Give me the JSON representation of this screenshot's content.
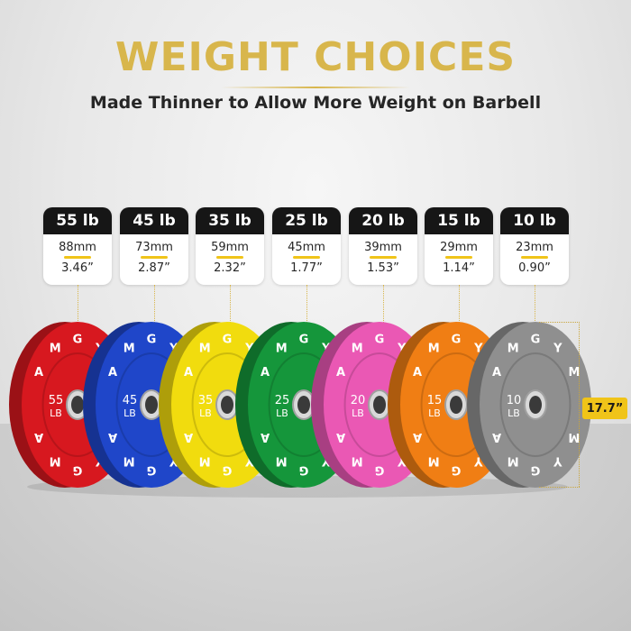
{
  "header": {
    "title": "WEIGHT CHOICES",
    "subtitle": "Made Thinner to Allow More Weight on Barbell"
  },
  "plates": [
    {
      "weight": "55 lb",
      "mm": "88mm",
      "inches": "3.46”",
      "number": "55",
      "unit": "LB",
      "color": "#d7181f"
    },
    {
      "weight": "45 lb",
      "mm": "73mm",
      "inches": "2.87”",
      "number": "45",
      "unit": "LB",
      "color": "#1f46c9"
    },
    {
      "weight": "35 lb",
      "mm": "59mm",
      "inches": "2.32”",
      "number": "35",
      "unit": "LB",
      "color": "#f1dc0e"
    },
    {
      "weight": "25 lb",
      "mm": "45mm",
      "inches": "1.77”",
      "number": "25",
      "unit": "LB",
      "color": "#15963b"
    },
    {
      "weight": "20 lb",
      "mm": "39mm",
      "inches": "1.53”",
      "number": "20",
      "unit": "LB",
      "color": "#ea58b4"
    },
    {
      "weight": "15 lb",
      "mm": "29mm",
      "inches": "1.14”",
      "number": "15",
      "unit": "LB",
      "color": "#f07e14"
    },
    {
      "weight": "10 lb",
      "mm": "23mm",
      "inches": "0.90”",
      "number": "10",
      "unit": "LB",
      "color": "#8f8f8f"
    }
  ],
  "brand": {
    "ring_text": "AMGYM"
  },
  "diameter": {
    "label": "17.7”"
  },
  "colors": {
    "accent_gold": "#d8b64c",
    "badge_yellow": "#f0c419",
    "card_header": "#161616"
  }
}
